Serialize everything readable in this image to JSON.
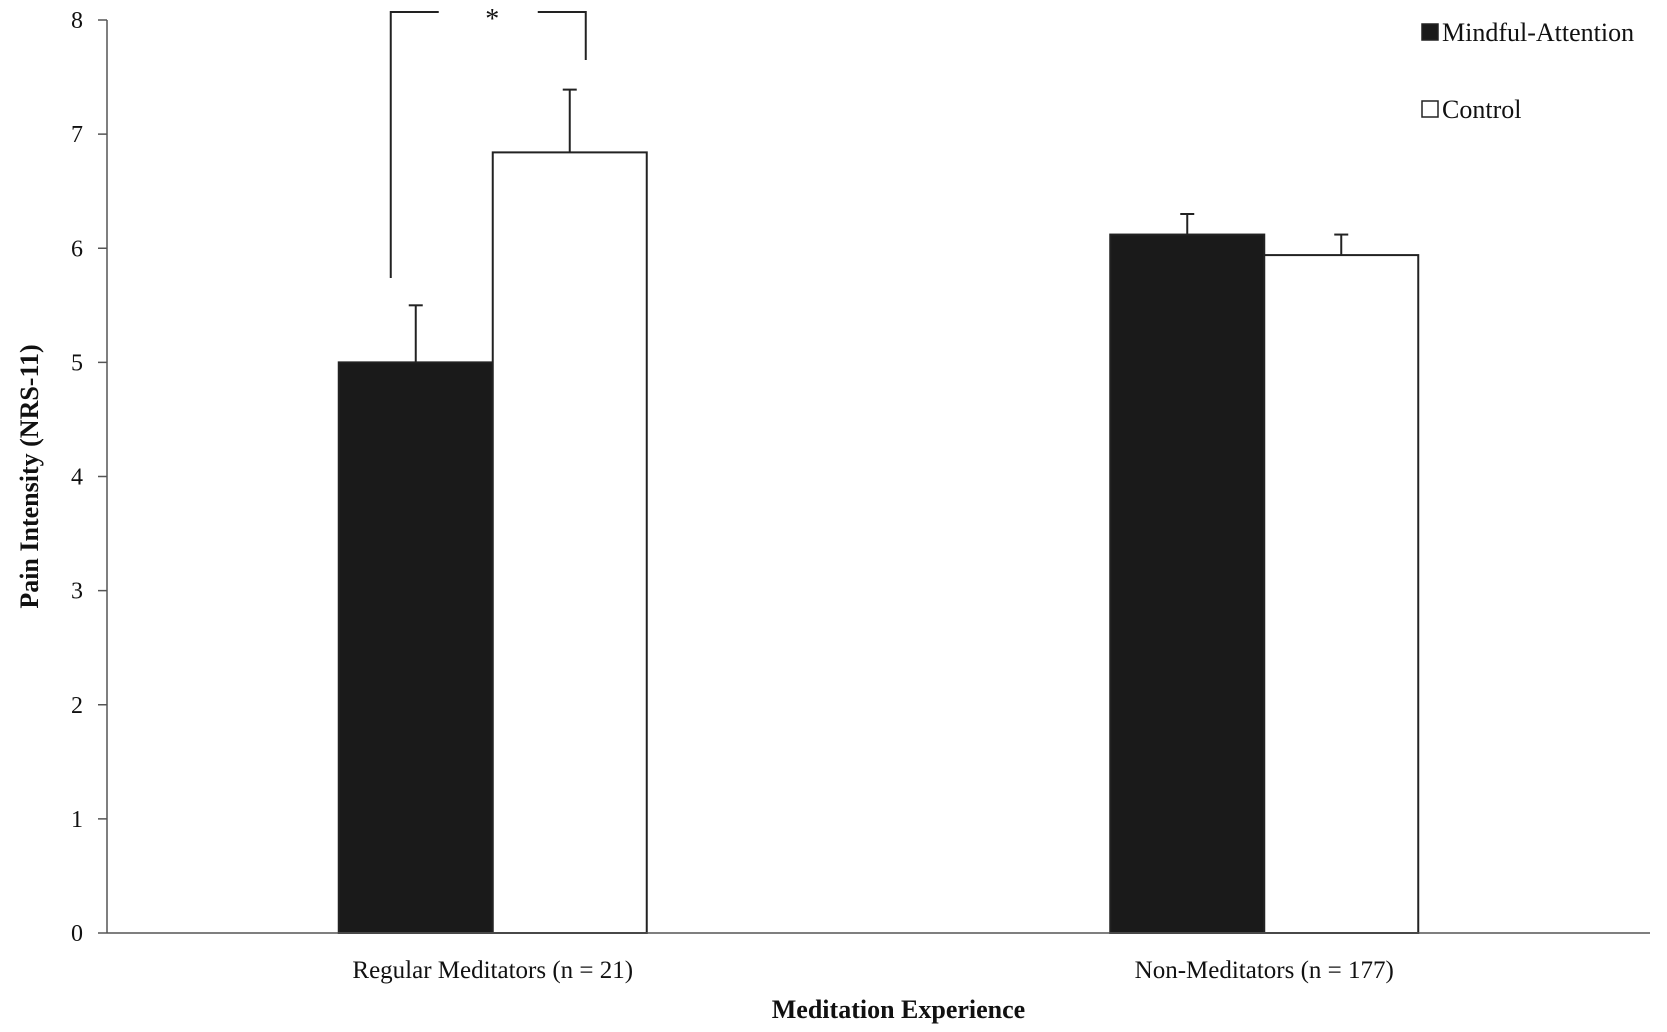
{
  "chart_data": {
    "type": "bar",
    "title": "",
    "xlabel": "Meditation Experience",
    "ylabel": "Pain Intensity (NRS-11)",
    "ylim": [
      0,
      8
    ],
    "yticks": [
      0,
      1,
      2,
      3,
      4,
      5,
      6,
      7,
      8
    ],
    "grid": false,
    "legend_position": "top-right",
    "categories": [
      "Regular Meditators (n = 21)",
      "Non-Meditators (n = 177)"
    ],
    "series": [
      {
        "name": "Mindful-Attention",
        "color": "#1a1a1a",
        "values": [
          5.0,
          6.12
        ],
        "error": [
          0.5,
          0.18
        ]
      },
      {
        "name": "Control",
        "color": "#ffffff",
        "values": [
          6.84,
          5.94
        ],
        "error": [
          0.55,
          0.18
        ]
      }
    ],
    "annotations": [
      {
        "type": "significance-bracket",
        "category": "Regular Meditators (n = 21)",
        "label": "*"
      }
    ]
  }
}
